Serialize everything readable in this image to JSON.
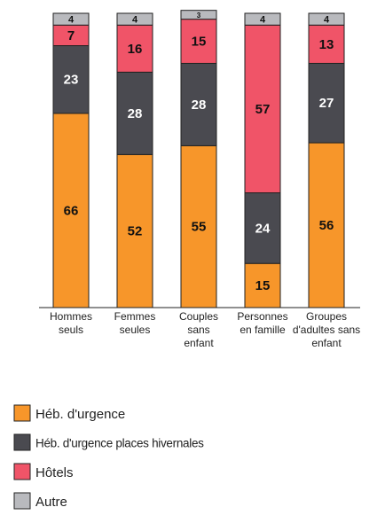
{
  "chart_data": {
    "type": "stacked-bar",
    "categories": [
      [
        "Hommes",
        "seuls"
      ],
      [
        "Femmes",
        "seules"
      ],
      [
        "Couples",
        "sans",
        "enfant"
      ],
      [
        "Personnes",
        "en famille"
      ],
      [
        "Groupes",
        "d'adultes sans",
        "enfant"
      ]
    ],
    "series": [
      {
        "name": "Héb. d'urgence",
        "color": "#f7962a",
        "values": [
          66,
          52,
          55,
          15,
          56
        ]
      },
      {
        "name": "Héb. d'urgence places hivernales",
        "color": "#4a4a50",
        "values": [
          23,
          28,
          28,
          24,
          27
        ]
      },
      {
        "name": "Hôtels",
        "color": "#f05468",
        "values": [
          7,
          16,
          15,
          57,
          13
        ]
      },
      {
        "name": "Autre",
        "color": "#b9babe",
        "values": [
          4,
          4,
          3,
          4,
          4
        ]
      }
    ]
  }
}
